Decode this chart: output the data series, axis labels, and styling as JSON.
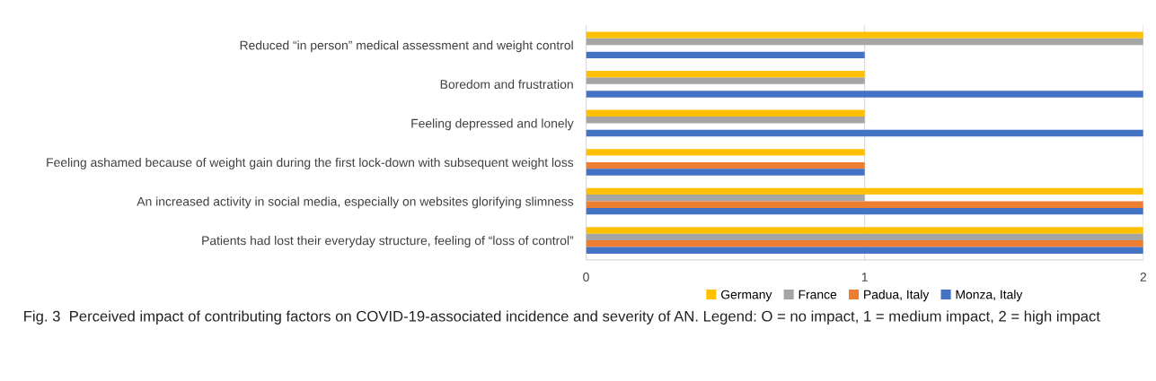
{
  "chart_data": {
    "type": "bar",
    "orientation": "horizontal",
    "categories": [
      "Reduced “in person” medical assessment and weight control",
      "Boredom and frustration",
      "Feeling depressed and lonely",
      "Feeling ashamed because of weight gain during the first lock-down with subsequent weight loss",
      "An increased activity in social media, especially on websites glorifying slimness",
      "Patients had lost their everyday structure, feeling of “loss of control”"
    ],
    "series": [
      {
        "name": "Germany",
        "color": "#ffc000",
        "values": [
          2,
          1,
          1,
          1,
          2,
          2
        ]
      },
      {
        "name": "France",
        "color": "#a5a5a5",
        "values": [
          2,
          1,
          1,
          0,
          1,
          2
        ]
      },
      {
        "name": "Padua, Italy",
        "color": "#ed7d31",
        "values": [
          0,
          0,
          0,
          1,
          2,
          2
        ]
      },
      {
        "name": "Monza, Italy",
        "color": "#4472c4",
        "values": [
          1,
          2,
          2,
          1,
          2,
          2
        ]
      }
    ],
    "xlim": [
      0,
      2
    ],
    "xticks": [
      0,
      1,
      2
    ],
    "grid": "x",
    "legend": "bottom",
    "annotations": [
      "Fig. 3  Perceived impact of contributing factors on COVID-19-associated incidence and severity of AN. Legend: O = no impact, 1 = medium impact, 2 = high impact"
    ]
  }
}
